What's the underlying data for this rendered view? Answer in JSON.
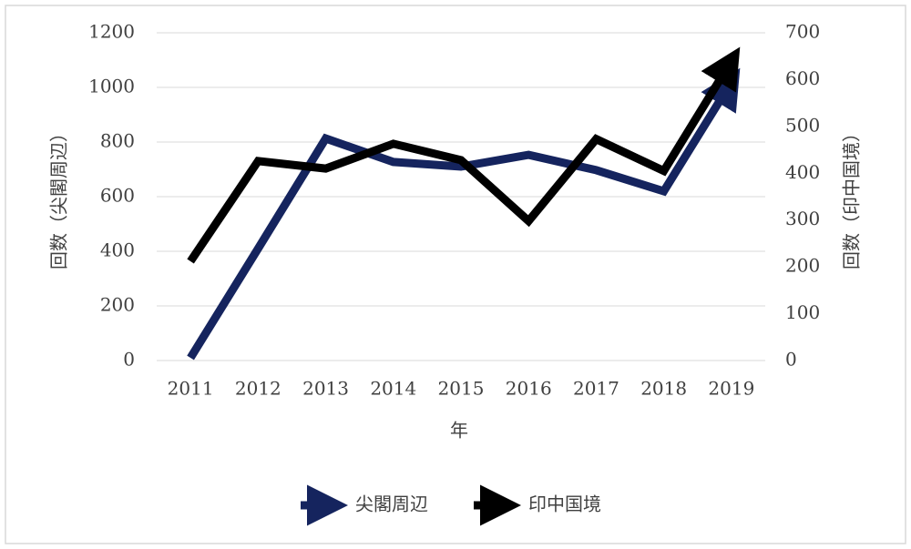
{
  "chart_data": {
    "type": "line",
    "categories": [
      "2011",
      "2012",
      "2013",
      "2014",
      "2015",
      "2016",
      "2017",
      "2018",
      "2019"
    ],
    "x_label": "年",
    "y_label": "回数（尖閣周辺）",
    "y2_label": "回数（印中国境）",
    "ylim": [
      0,
      1200
    ],
    "yticks": [
      0,
      200,
      400,
      600,
      800,
      1000,
      1200
    ],
    "y2lim": [
      0,
      700
    ],
    "y2ticks": [
      0,
      100,
      200,
      300,
      400,
      500,
      600,
      700
    ],
    "grid": true,
    "legend": "bottom",
    "series": [
      {
        "name": "尖閣周辺",
        "color": "#15245e",
        "values": [
          10,
          410,
          813,
          727,
          710,
          753,
          697,
          620,
          1020
        ]
      },
      {
        "name": "印中国境",
        "color": "#000000",
        "axis": "y2",
        "values": [
          212,
          426,
          410,
          463,
          428,
          298,
          473,
          405,
          640
        ]
      }
    ]
  }
}
